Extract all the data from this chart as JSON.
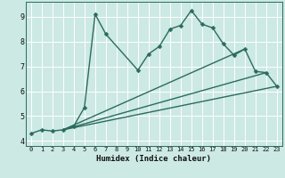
{
  "title": "",
  "xlabel": "Humidex (Indice chaleur)",
  "bg_color": "#cce9e4",
  "grid_color": "#ffffff",
  "line_color": "#2a6b5e",
  "xlim": [
    -0.5,
    23.5
  ],
  "ylim": [
    3.8,
    9.6
  ],
  "yticks": [
    4,
    5,
    6,
    7,
    8,
    9
  ],
  "xticks": [
    0,
    1,
    2,
    3,
    4,
    5,
    6,
    7,
    8,
    9,
    10,
    11,
    12,
    13,
    14,
    15,
    16,
    17,
    18,
    19,
    20,
    21,
    22,
    23
  ],
  "line1_x": [
    0,
    1,
    2,
    3,
    4,
    5,
    6,
    7,
    10,
    11,
    12,
    13,
    14,
    15,
    16,
    17,
    18,
    19,
    20,
    21,
    22,
    23
  ],
  "line1_y": [
    4.3,
    4.45,
    4.4,
    4.45,
    4.6,
    5.35,
    9.1,
    8.3,
    6.85,
    7.5,
    7.8,
    8.5,
    8.65,
    9.25,
    8.7,
    8.55,
    7.9,
    7.45,
    7.7,
    6.8,
    6.75,
    6.2
  ],
  "line2_x": [
    3,
    23
  ],
  "line2_y": [
    4.45,
    6.2
  ],
  "line3_x": [
    3,
    22
  ],
  "line3_y": [
    4.45,
    6.75
  ],
  "line4_x": [
    3,
    20
  ],
  "line4_y": [
    4.45,
    7.7
  ],
  "markersize": 2.5,
  "linewidth": 1.0
}
